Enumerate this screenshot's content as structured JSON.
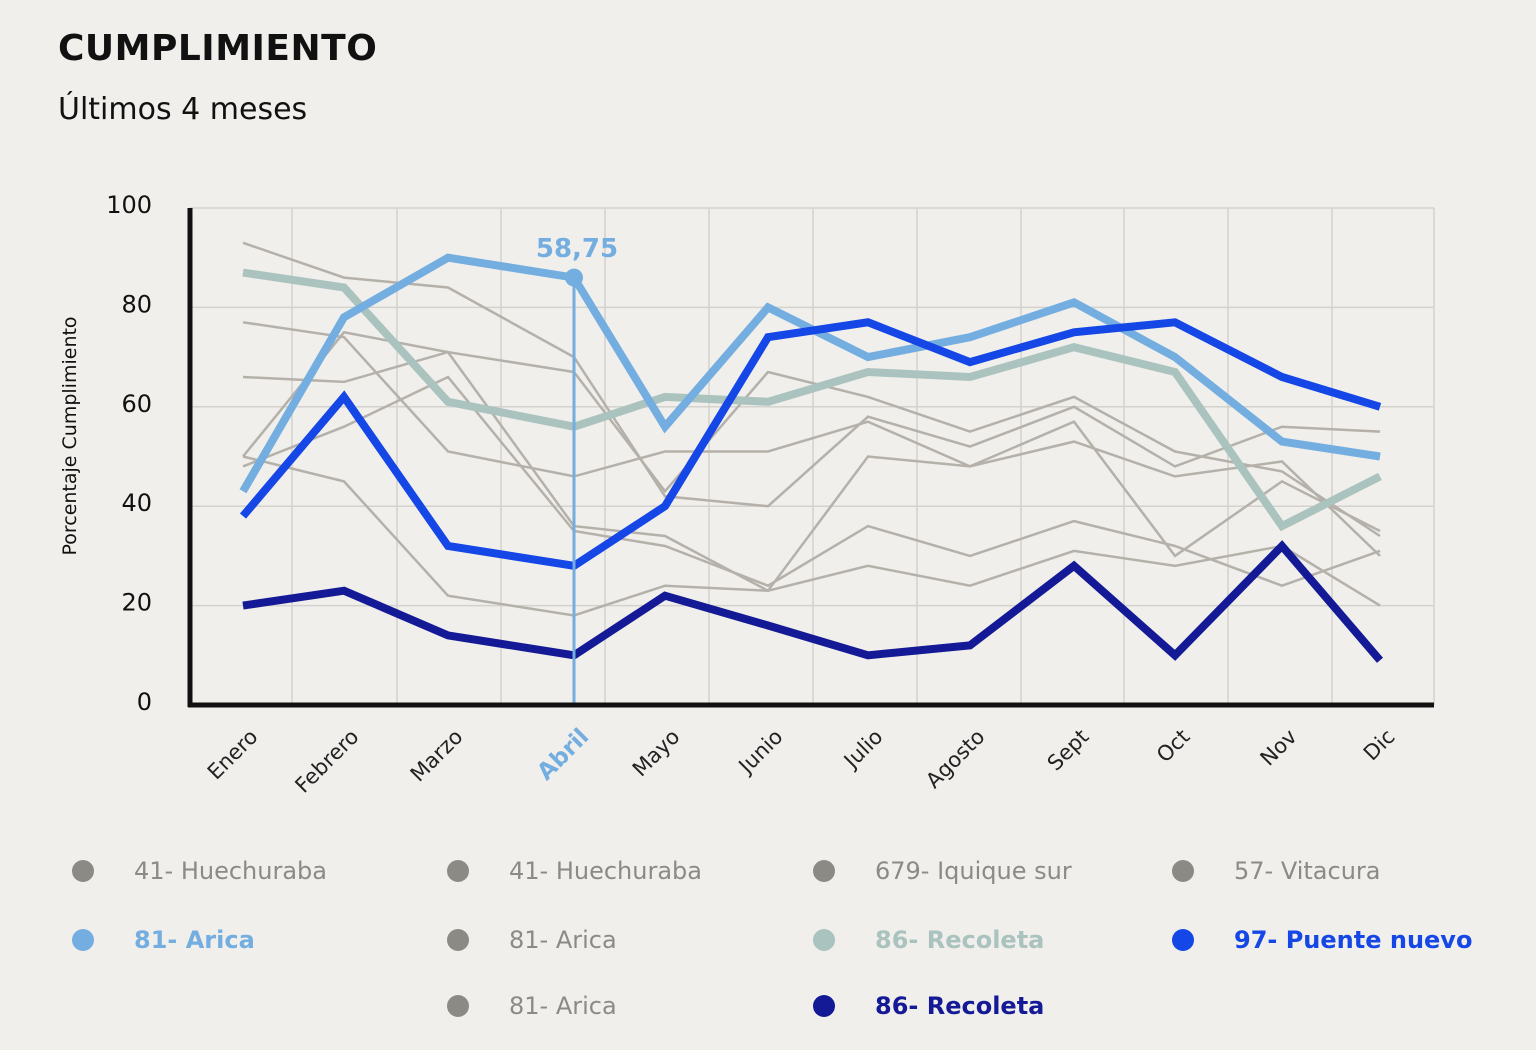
{
  "header": {
    "title": "CUMPLIMIENTO",
    "subtitle": "Últimos 4 meses"
  },
  "colors": {
    "grey": "#b5b1aa",
    "grey_dot": "#8c8a84",
    "light_blue": "#74aee0",
    "sage": "#abc3bf",
    "bright_blue": "#1546e6",
    "navy": "#141a96",
    "highlight": "#74aee0",
    "grid": "#d4d2cd",
    "axis": "#111111"
  },
  "chart_data": {
    "type": "line",
    "ylabel": "Porcentaje Cumplimiento",
    "ylim": [
      0,
      100
    ],
    "yticks": [
      0,
      20,
      40,
      60,
      80,
      100
    ],
    "categories": [
      "Enero",
      "Febrero",
      "Marzo",
      "Abril",
      "Mayo",
      "Junio",
      "Julio",
      "Agosto",
      "Sept",
      "Oct",
      "Nov",
      "Dic"
    ],
    "highlight": {
      "category": "Abril",
      "value_label": "58,75"
    },
    "grid": true,
    "series": [
      {
        "values": [
          93,
          86,
          84,
          70,
          42,
          40,
          58,
          52,
          60,
          48,
          56,
          55
        ],
        "style": "grey"
      },
      {
        "values": [
          77,
          74,
          51,
          46,
          51,
          51,
          57,
          48,
          57,
          30,
          45,
          35
        ],
        "style": "grey"
      },
      {
        "values": [
          48,
          56,
          66,
          35,
          32,
          24,
          36,
          30,
          37,
          32,
          24,
          31
        ],
        "style": "grey"
      },
      {
        "values": [
          66,
          65,
          71,
          67,
          43,
          67,
          62,
          55,
          62,
          51,
          47,
          34
        ],
        "style": "grey"
      },
      {
        "values": [
          50,
          45,
          22,
          18,
          24,
          23,
          28,
          24,
          31,
          28,
          32,
          20
        ],
        "style": "grey"
      },
      {
        "values": [
          50,
          75,
          71,
          36,
          34,
          23,
          50,
          48,
          53,
          46,
          49,
          30
        ],
        "style": "grey"
      },
      {
        "values": [
          43,
          78,
          90,
          86,
          56,
          80,
          70,
          74,
          81,
          70,
          53,
          50
        ],
        "style": "light_blue"
      },
      {
        "values": [
          87,
          84,
          61,
          56,
          62,
          61,
          67,
          66,
          72,
          67,
          36,
          46
        ],
        "style": "sage"
      },
      {
        "values": [
          38,
          62,
          32,
          28,
          40,
          74,
          77,
          69,
          75,
          77,
          66,
          60
        ],
        "style": "bright_blue"
      },
      {
        "values": [
          20,
          23,
          14,
          10,
          22,
          16,
          10,
          12,
          28,
          10,
          32,
          9
        ],
        "style": "navy"
      }
    ]
  },
  "legend": [
    {
      "label": "41- Huechuraba",
      "color": "#8c8a84",
      "text_color": "#8c8a84",
      "bold": false
    },
    {
      "label": "41- Huechuraba",
      "color": "#8c8a84",
      "text_color": "#8c8a84",
      "bold": false
    },
    {
      "label": "679- Iquique sur",
      "color": "#8c8a84",
      "text_color": "#8c8a84",
      "bold": false
    },
    {
      "label": "57- Vitacura",
      "color": "#8c8a84",
      "text_color": "#8c8a84",
      "bold": false
    },
    {
      "label": "81- Arica",
      "color": "#74aee0",
      "text_color": "#74aee0",
      "bold": true
    },
    {
      "label": "81- Arica",
      "color": "#8c8a84",
      "text_color": "#8c8a84",
      "bold": false
    },
    {
      "label": "86- Recoleta",
      "color": "#abc3bf",
      "text_color": "#abc3bf",
      "bold": true
    },
    {
      "label": "97- Puente nuevo",
      "color": "#1546e6",
      "text_color": "#1546e6",
      "bold": true
    },
    {
      "label": "81- Arica",
      "color": "#8c8a84",
      "text_color": "#8c8a84",
      "bold": false
    },
    {
      "label": "86- Recoleta",
      "color": "#141a96",
      "text_color": "#141a96",
      "bold": true
    }
  ]
}
